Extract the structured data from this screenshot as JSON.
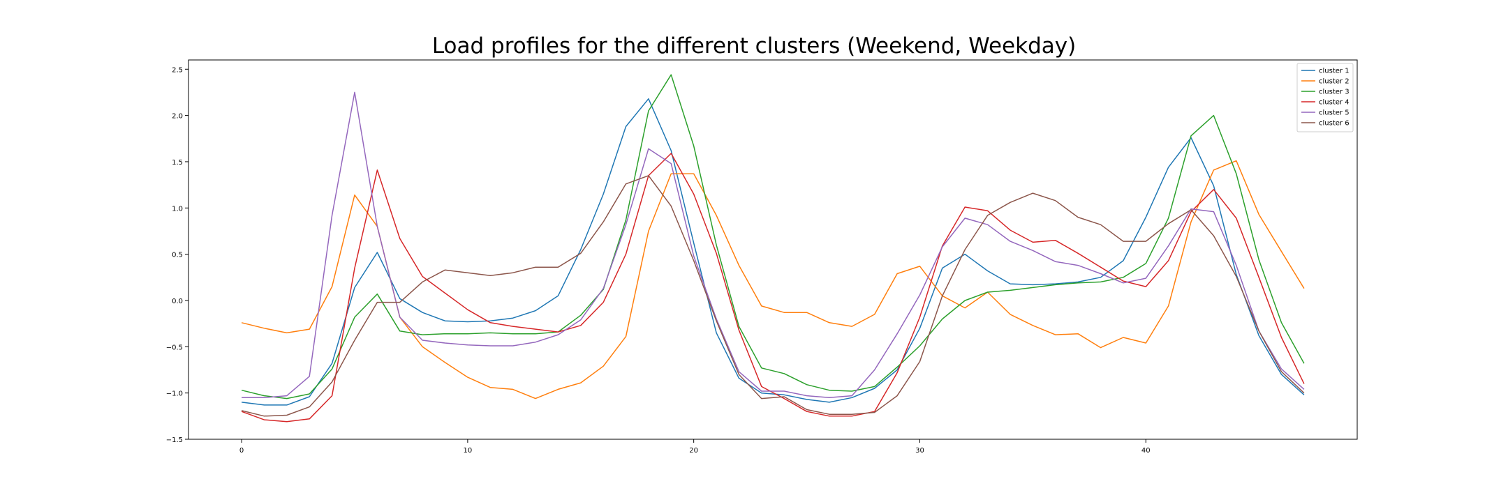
{
  "chart_data": {
    "type": "line",
    "title": "Load profiles for the different clusters (Weekend, Weekday)",
    "xlabel": "",
    "ylabel": "",
    "xlim": [
      -2.35,
      49.35
    ],
    "ylim": [
      -1.5,
      2.6
    ],
    "xticks": [
      0,
      10,
      20,
      30,
      40
    ],
    "xtick_labels": [
      "0",
      "10",
      "20",
      "30",
      "40"
    ],
    "yticks": [
      -1.5,
      -1.0,
      -0.5,
      0.0,
      0.5,
      1.0,
      1.5,
      2.0,
      2.5
    ],
    "ytick_labels": [
      "−1.5",
      "−1.0",
      "−0.5",
      "0.0",
      "0.5",
      "1.0",
      "1.5",
      "2.0",
      "2.5"
    ],
    "grid": false,
    "legend_position": "top-right",
    "x": [
      0,
      1,
      2,
      3,
      4,
      5,
      6,
      7,
      8,
      9,
      10,
      11,
      12,
      13,
      14,
      15,
      16,
      17,
      18,
      19,
      20,
      21,
      22,
      23,
      24,
      25,
      26,
      27,
      28,
      29,
      30,
      31,
      32,
      33,
      34,
      35,
      36,
      37,
      38,
      39,
      40,
      41,
      42,
      43,
      44,
      45,
      46,
      47
    ],
    "series": [
      {
        "name": "cluster 1",
        "color": "#1f77b4",
        "values": [
          -1.1,
          -1.13,
          -1.13,
          -1.04,
          -0.68,
          0.14,
          0.52,
          0.02,
          -0.13,
          -0.22,
          -0.23,
          -0.22,
          -0.19,
          -0.11,
          0.05,
          0.55,
          1.15,
          1.88,
          2.18,
          1.62,
          0.62,
          -0.35,
          -0.84,
          -1.0,
          -1.02,
          -1.07,
          -1.1,
          -1.05,
          -0.95,
          -0.75,
          -0.3,
          0.35,
          0.5,
          0.32,
          0.18,
          0.17,
          0.18,
          0.2,
          0.25,
          0.43,
          0.9,
          1.44,
          1.76,
          1.24,
          0.28,
          -0.38,
          -0.8,
          -1.02
        ]
      },
      {
        "name": "cluster 2",
        "color": "#ff7f0e",
        "values": [
          -0.24,
          -0.3,
          -0.35,
          -0.31,
          0.15,
          1.14,
          0.8,
          -0.18,
          -0.5,
          -0.67,
          -0.83,
          -0.94,
          -0.96,
          -1.06,
          -0.96,
          -0.89,
          -0.71,
          -0.39,
          0.75,
          1.37,
          1.37,
          0.92,
          0.38,
          -0.06,
          -0.13,
          -0.13,
          -0.24,
          -0.28,
          -0.15,
          0.29,
          0.37,
          0.05,
          -0.08,
          0.09,
          -0.15,
          -0.27,
          -0.37,
          -0.36,
          -0.51,
          -0.4,
          -0.46,
          -0.06,
          0.85,
          1.41,
          1.51,
          0.93,
          0.53,
          0.13
        ]
      },
      {
        "name": "cluster 3",
        "color": "#2ca02c",
        "values": [
          -0.97,
          -1.03,
          -1.06,
          -1.01,
          -0.74,
          -0.18,
          0.07,
          -0.33,
          -0.37,
          -0.36,
          -0.36,
          -0.35,
          -0.36,
          -0.36,
          -0.34,
          -0.16,
          0.12,
          0.87,
          2.05,
          2.44,
          1.67,
          0.6,
          -0.28,
          -0.73,
          -0.79,
          -0.91,
          -0.97,
          -0.98,
          -0.93,
          -0.72,
          -0.49,
          -0.2,
          0.0,
          0.09,
          0.11,
          0.14,
          0.17,
          0.19,
          0.2,
          0.25,
          0.4,
          0.89,
          1.78,
          2.0,
          1.37,
          0.44,
          -0.24,
          -0.68
        ]
      },
      {
        "name": "cluster 4",
        "color": "#d62728",
        "values": [
          -1.2,
          -1.29,
          -1.31,
          -1.28,
          -1.03,
          0.35,
          1.41,
          0.67,
          0.26,
          0.08,
          -0.1,
          -0.24,
          -0.28,
          -0.31,
          -0.34,
          -0.27,
          -0.02,
          0.5,
          1.35,
          1.59,
          1.15,
          0.51,
          -0.32,
          -0.93,
          -1.06,
          -1.2,
          -1.25,
          -1.25,
          -1.2,
          -0.78,
          -0.18,
          0.59,
          1.01,
          0.97,
          0.76,
          0.63,
          0.65,
          0.51,
          0.36,
          0.21,
          0.15,
          0.43,
          0.96,
          1.2,
          0.89,
          0.25,
          -0.4,
          -0.9
        ]
      },
      {
        "name": "cluster 5",
        "color": "#9467bd",
        "values": [
          -1.05,
          -1.05,
          -1.03,
          -0.82,
          0.92,
          2.25,
          0.8,
          -0.18,
          -0.43,
          -0.46,
          -0.48,
          -0.49,
          -0.49,
          -0.45,
          -0.37,
          -0.21,
          0.13,
          0.82,
          1.64,
          1.48,
          0.48,
          -0.2,
          -0.77,
          -0.98,
          -0.98,
          -1.03,
          -1.05,
          -1.03,
          -0.75,
          -0.36,
          0.06,
          0.58,
          0.89,
          0.82,
          0.64,
          0.54,
          0.42,
          0.38,
          0.29,
          0.19,
          0.24,
          0.59,
          0.99,
          0.96,
          0.38,
          -0.33,
          -0.74,
          -0.96
        ]
      },
      {
        "name": "cluster 6",
        "color": "#8c564b",
        "values": [
          -1.19,
          -1.25,
          -1.24,
          -1.15,
          -0.88,
          -0.43,
          -0.02,
          -0.02,
          0.2,
          0.33,
          0.3,
          0.27,
          0.3,
          0.36,
          0.36,
          0.51,
          0.85,
          1.26,
          1.35,
          1.02,
          0.43,
          -0.22,
          -0.8,
          -1.06,
          -1.04,
          -1.18,
          -1.23,
          -1.23,
          -1.21,
          -1.03,
          -0.66,
          0.05,
          0.55,
          0.92,
          1.06,
          1.16,
          1.08,
          0.9,
          0.82,
          0.64,
          0.64,
          0.83,
          0.98,
          0.7,
          0.26,
          -0.33,
          -0.77,
          -1.0
        ]
      }
    ]
  }
}
